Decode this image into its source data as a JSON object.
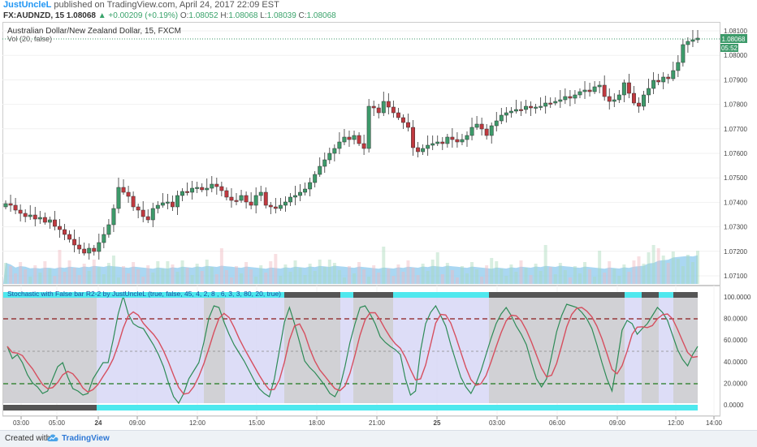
{
  "header": {
    "author": "JustUncleL",
    "published": "published on TradingView.com, April 24, 2017 22:09 EST",
    "symbol": "FX:AUDNZD, 15",
    "last": "1.08068",
    "change_arrow": "▲",
    "change": "+0.00209 (+0.19%)",
    "o_label": "O:",
    "o_val": "1.08052",
    "h_label": "H:",
    "h_val": "1.08068",
    "l_label": "L:",
    "l_val": "1.08039",
    "c_label": "C:",
    "c_val": "1.08068"
  },
  "chart": {
    "title": "Australian Dollar/New Zealand Dollar, 15, FXCM",
    "volume_label": "Vol (20, false)",
    "last_price_tag": "1.08068",
    "countdown_tag": "05:52",
    "indicator_label": "Stochastic with False bar R2-2 by JustUncleL (true, false, 45, 4, 2, 8 , 6, 3, 3, 80, 20, true)",
    "price_ticks": [
      "1.08100",
      "1.08000",
      "1.07900",
      "1.07800",
      "1.07700",
      "1.07600",
      "1.07500",
      "1.07400",
      "1.07300",
      "1.07200",
      "1.07100"
    ],
    "stoch_ticks": [
      "100.0000",
      "80.0000",
      "60.0000",
      "40.0000",
      "20.0000",
      "0.0000"
    ],
    "time_ticks": [
      "03:00",
      "05:00",
      "24",
      "09:00",
      "12:00",
      "15:00",
      "18:00",
      "21:00",
      "25",
      "03:00",
      "06:00",
      "09:00",
      "12:00",
      "14:00"
    ],
    "colors": {
      "up": "#3d9a6a",
      "down": "#c0393f",
      "volume": "#8ec9ee",
      "stoch_k": "#2e8b57",
      "stoch_d": "#d64f5f",
      "band": "#d5d4f5",
      "shade": "#cfcfcf",
      "cyan_bar": "#4ee8ee",
      "dark_bar": "#555555"
    }
  },
  "footer": {
    "created_with": "Created with",
    "brand": "TradingView"
  }
}
